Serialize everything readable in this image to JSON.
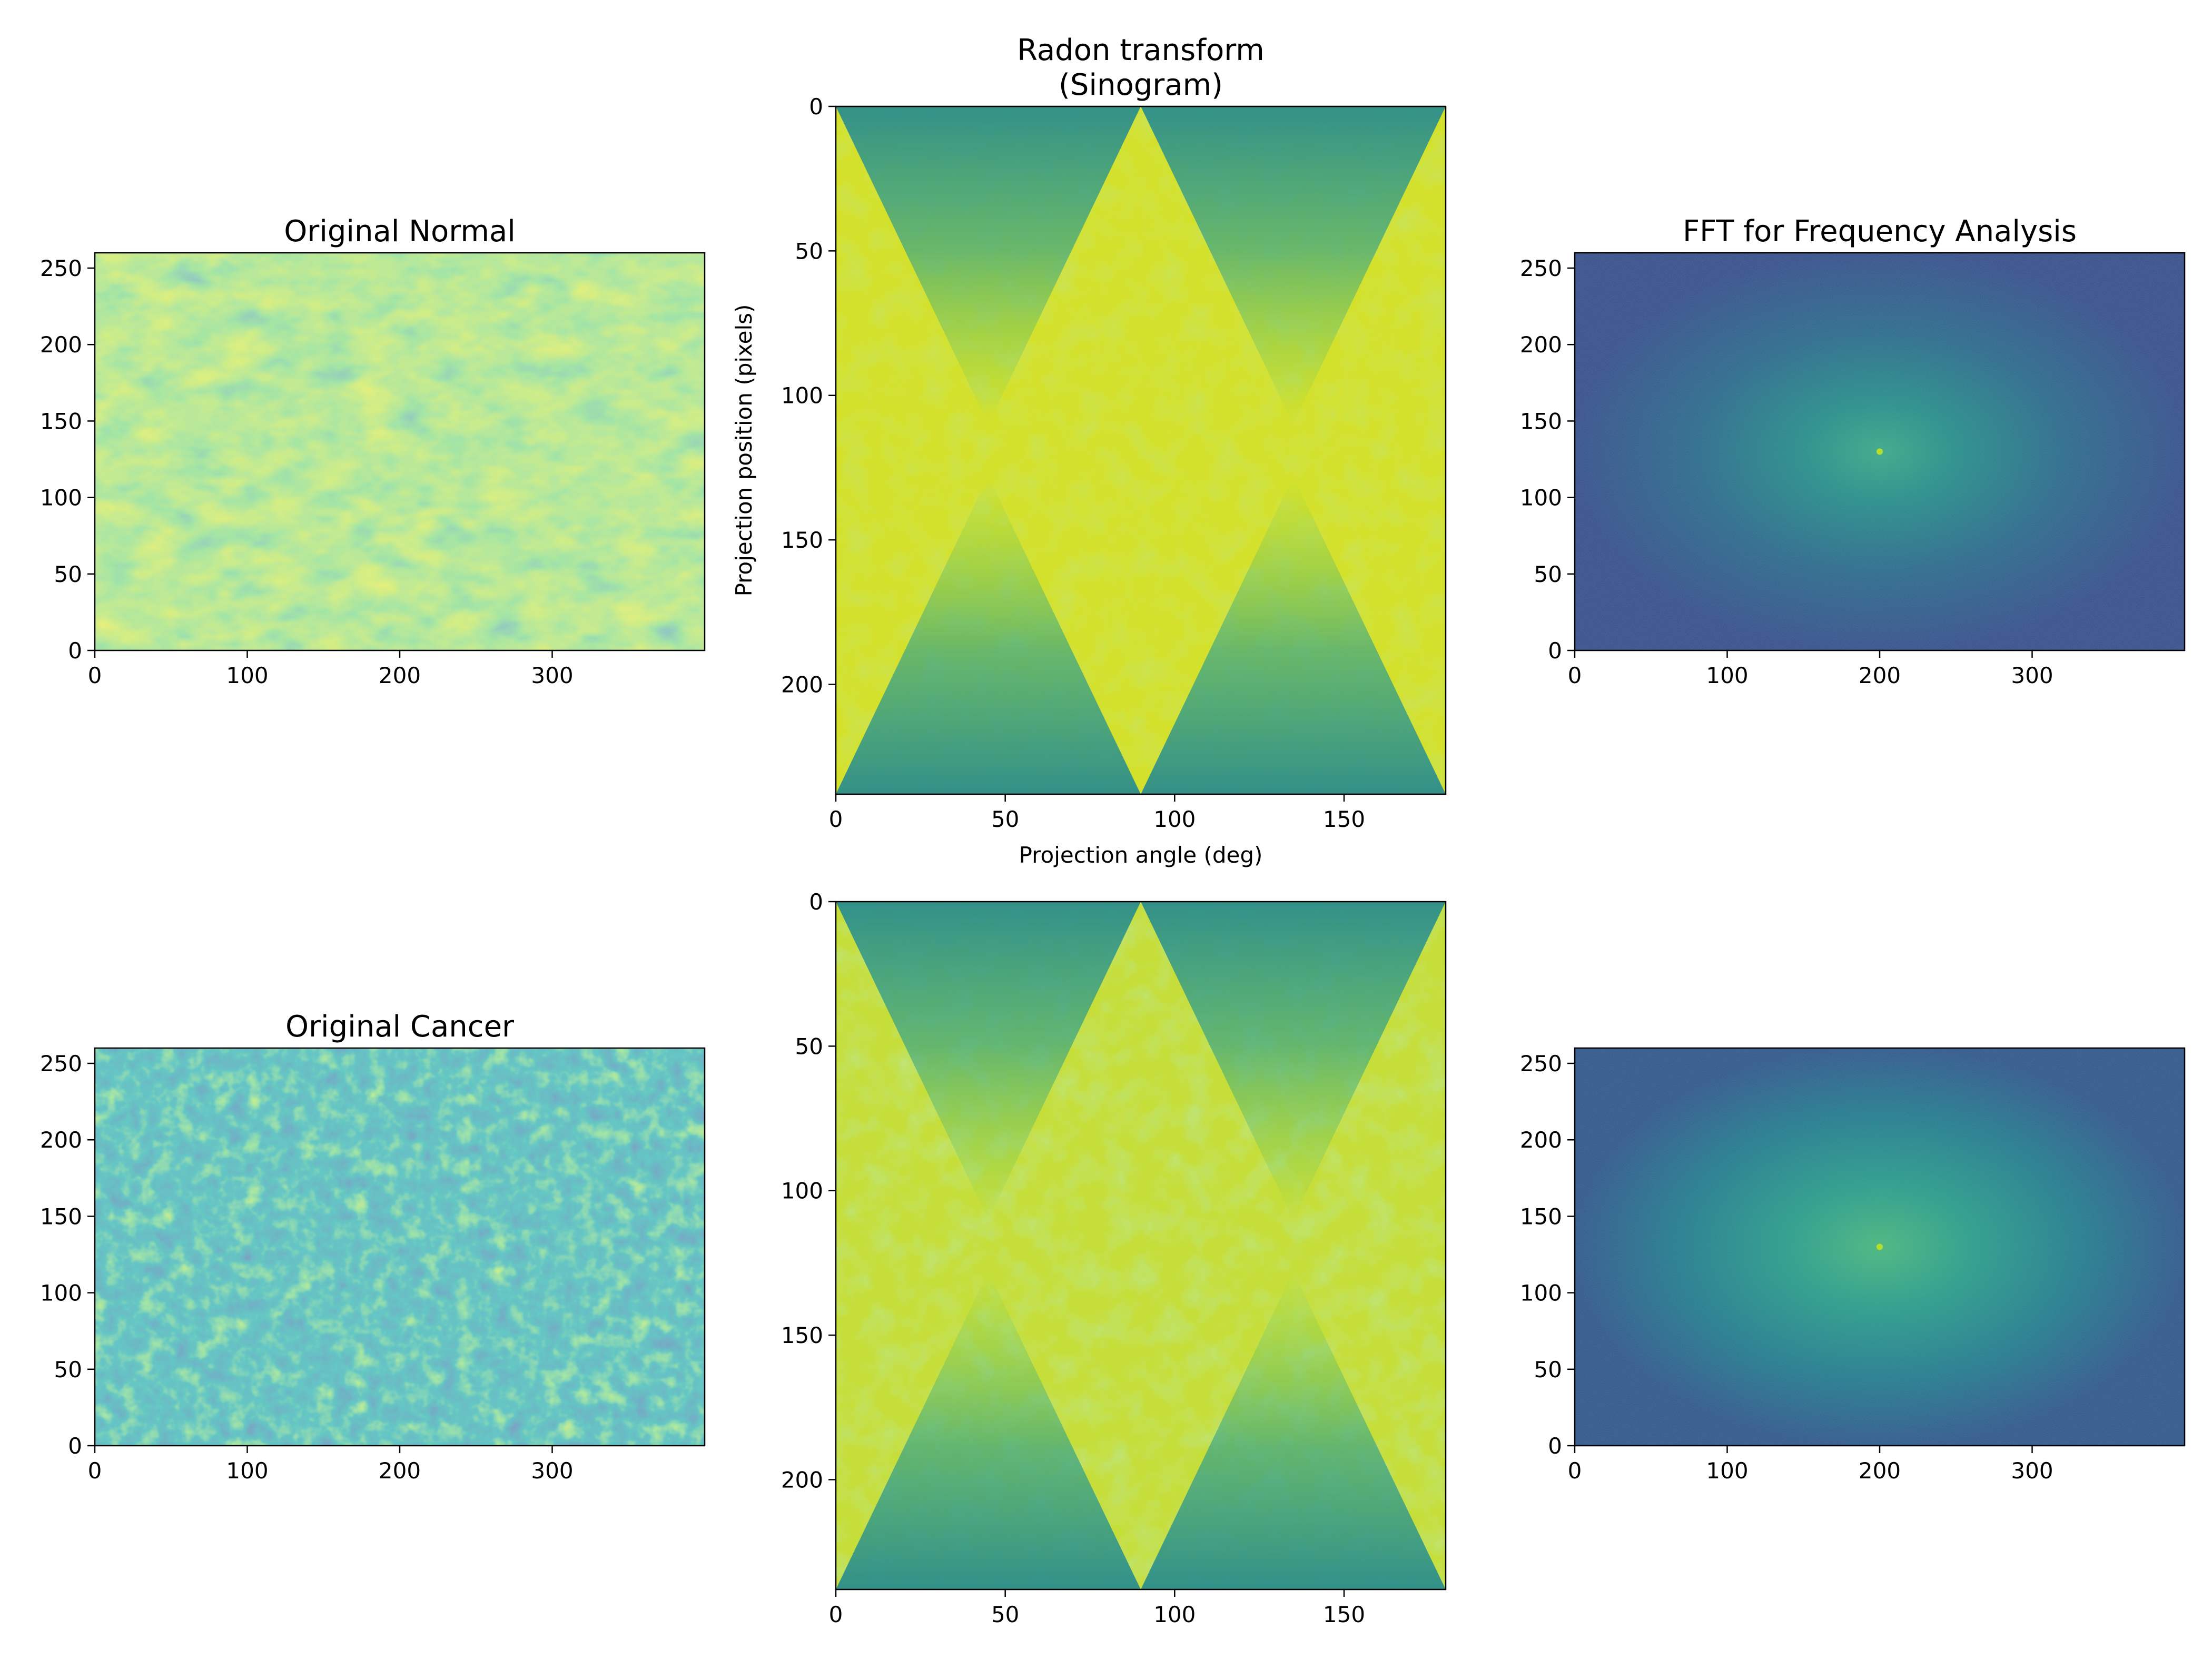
{
  "colormap": [
    "#440154",
    "#3b528b",
    "#21918c",
    "#5ec962",
    "#fde725"
  ],
  "chart_data": [
    {
      "id": "normal-image",
      "type": "heatmap",
      "title": "Original Normal",
      "xlabel": "",
      "ylabel": "",
      "xlim": [
        0,
        400
      ],
      "ylim": [
        260,
        0
      ],
      "xticks": [
        0,
        100,
        200,
        300
      ],
      "yticks": [
        0,
        50,
        100,
        150,
        200,
        250
      ],
      "content": "normal"
    },
    {
      "id": "normal-sinogram",
      "type": "heatmap",
      "title": "Radon transform\n(Sinogram)",
      "xlabel": "Projection angle (deg)",
      "ylabel": "Projection position (pixels)",
      "xlim": [
        0,
        180
      ],
      "ylim": [
        0,
        238
      ],
      "xticks": [
        0,
        50,
        100,
        150
      ],
      "yticks": [
        0,
        50,
        100,
        150,
        200
      ],
      "content": "sino-normal"
    },
    {
      "id": "normal-fft",
      "type": "heatmap",
      "title": "FFT for Frequency Analysis",
      "xlabel": "",
      "ylabel": "",
      "xlim": [
        0,
        400
      ],
      "ylim": [
        260,
        0
      ],
      "xticks": [
        0,
        100,
        200,
        300
      ],
      "yticks": [
        0,
        50,
        100,
        150,
        200,
        250
      ],
      "content": "fft-normal"
    },
    {
      "id": "cancer-image",
      "type": "heatmap",
      "title": "Original Cancer",
      "xlabel": "",
      "ylabel": "",
      "xlim": [
        0,
        400
      ],
      "ylim": [
        260,
        0
      ],
      "xticks": [
        0,
        100,
        200,
        300
      ],
      "yticks": [
        0,
        50,
        100,
        150,
        200,
        250
      ],
      "content": "cancer"
    },
    {
      "id": "cancer-sinogram",
      "type": "heatmap",
      "title": "",
      "xlabel": "",
      "ylabel": "",
      "xlim": [
        0,
        180
      ],
      "ylim": [
        0,
        238
      ],
      "xticks": [
        0,
        50,
        100,
        150
      ],
      "yticks": [
        0,
        50,
        100,
        150,
        200
      ],
      "content": "sino-cancer"
    },
    {
      "id": "cancer-fft",
      "type": "heatmap",
      "title": "",
      "xlabel": "",
      "ylabel": "",
      "xlim": [
        0,
        400
      ],
      "ylim": [
        260,
        0
      ],
      "xticks": [
        0,
        100,
        200,
        300
      ],
      "yticks": [
        0,
        50,
        100,
        150,
        200,
        250
      ],
      "content": "fft-cancer"
    }
  ]
}
